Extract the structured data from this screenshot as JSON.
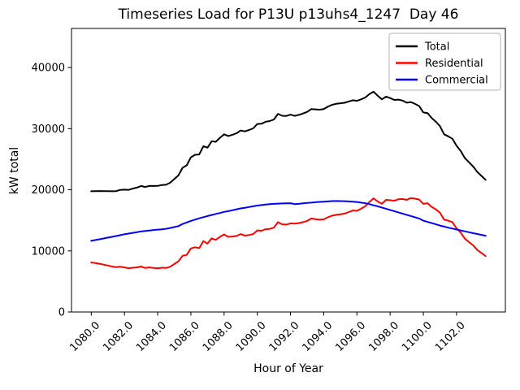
{
  "chart_data": {
    "type": "line",
    "title": "Timeseries Load for P13U p13uhs4_1247  Day 46",
    "xlabel": "Hour of Year",
    "ylabel": "kW total",
    "xlim": [
      1078.81,
      1104.94
    ],
    "ylim": [
      0,
      46400
    ],
    "grid": false,
    "x_tick_values": [
      1080,
      1082,
      1084,
      1086,
      1088,
      1090,
      1092,
      1094,
      1096,
      1098,
      1100,
      1102
    ],
    "x_tick_labels": [
      "1080.0",
      "1082.0",
      "1084.0",
      "1086.0",
      "1088.0",
      "1090.0",
      "1092.0",
      "1094.0",
      "1096.0",
      "1098.0",
      "1100.0",
      "1102.0"
    ],
    "y_ticks": [
      0,
      10000,
      20000,
      30000,
      40000
    ],
    "y_tick_labels": [
      "0",
      "10000",
      "20000",
      "30000",
      "40000"
    ],
    "legend": {
      "position": "upper-right",
      "entries": [
        {
          "label": "Total",
          "color": "#000000"
        },
        {
          "label": "Residential",
          "color": "#ff0000"
        },
        {
          "label": "Commercial",
          "color": "#0000ff"
        }
      ]
    },
    "x": [
      1080.0,
      1080.25,
      1080.5,
      1080.75,
      1081.0,
      1081.25,
      1081.5,
      1081.75,
      1082.0,
      1082.25,
      1082.5,
      1082.75,
      1083.0,
      1083.25,
      1083.5,
      1083.75,
      1084.0,
      1084.25,
      1084.5,
      1084.75,
      1085.0,
      1085.25,
      1085.5,
      1085.75,
      1086.0,
      1086.25,
      1086.5,
      1086.75,
      1087.0,
      1087.25,
      1087.5,
      1087.75,
      1088.0,
      1088.25,
      1088.5,
      1088.75,
      1089.0,
      1089.25,
      1089.5,
      1089.75,
      1090.0,
      1090.25,
      1090.5,
      1090.75,
      1091.0,
      1091.25,
      1091.5,
      1091.75,
      1092.0,
      1092.25,
      1092.5,
      1092.75,
      1093.0,
      1093.25,
      1093.5,
      1093.75,
      1094.0,
      1094.25,
      1094.5,
      1094.75,
      1095.0,
      1095.25,
      1095.5,
      1095.75,
      1096.0,
      1096.25,
      1096.5,
      1096.75,
      1097.0,
      1097.25,
      1097.5,
      1097.75,
      1098.0,
      1098.25,
      1098.5,
      1098.75,
      1099.0,
      1099.25,
      1099.5,
      1099.75,
      1100.0,
      1100.25,
      1100.5,
      1100.75,
      1101.0,
      1101.25,
      1101.5,
      1101.75,
      1102.0,
      1102.25,
      1102.5,
      1102.75,
      1103.0,
      1103.25,
      1103.5,
      1103.75
    ],
    "series": [
      {
        "name": "Total",
        "color": "#000000",
        "values": [
          19750,
          19780,
          19800,
          19780,
          19780,
          19750,
          19780,
          19980,
          20020,
          19980,
          20200,
          20350,
          20620,
          20460,
          20630,
          20620,
          20630,
          20780,
          20820,
          21150,
          21750,
          22350,
          23600,
          24000,
          25300,
          25720,
          25780,
          27120,
          26900,
          27930,
          27850,
          28500,
          29080,
          28800,
          29000,
          29250,
          29700,
          29560,
          29780,
          30050,
          30770,
          30800,
          31130,
          31250,
          31500,
          32430,
          32110,
          32080,
          32300,
          32100,
          32250,
          32480,
          32750,
          33200,
          33160,
          33110,
          33210,
          33600,
          33900,
          34060,
          34150,
          34230,
          34450,
          34650,
          34550,
          34800,
          35100,
          35650,
          36050,
          35400,
          34800,
          35250,
          35000,
          34700,
          34750,
          34600,
          34250,
          34350,
          34050,
          33700,
          32650,
          32550,
          31750,
          31150,
          30400,
          29070,
          28750,
          28350,
          27200,
          26350,
          25200,
          24500,
          23800,
          22910,
          22270,
          21630
        ]
      },
      {
        "name": "Residential",
        "color": "#ff0000",
        "values": [
          8100,
          8000,
          7900,
          7750,
          7600,
          7450,
          7350,
          7400,
          7300,
          7150,
          7250,
          7300,
          7450,
          7200,
          7300,
          7200,
          7150,
          7250,
          7200,
          7400,
          7850,
          8300,
          9200,
          9350,
          10400,
          10600,
          10450,
          11600,
          11200,
          12050,
          11800,
          12300,
          12700,
          12300,
          12350,
          12450,
          12750,
          12500,
          12600,
          12750,
          13350,
          13300,
          13550,
          13600,
          13800,
          14700,
          14350,
          14300,
          14500,
          14450,
          14550,
          14700,
          14900,
          15300,
          15200,
          15100,
          15150,
          15500,
          15750,
          15900,
          16000,
          16100,
          16350,
          16600,
          16550,
          16900,
          17300,
          18000,
          18600,
          18100,
          17700,
          18350,
          18300,
          18200,
          18450,
          18500,
          18350,
          18650,
          18550,
          18400,
          17700,
          17800,
          17200,
          16800,
          16250,
          15100,
          14950,
          14700,
          13700,
          13000,
          12000,
          11450,
          10900,
          10150,
          9650,
          9150
        ]
      },
      {
        "name": "Commercial",
        "color": "#0000ff",
        "values": [
          11650,
          11780,
          11900,
          12030,
          12180,
          12300,
          12430,
          12580,
          12720,
          12830,
          12950,
          13050,
          13170,
          13260,
          13330,
          13420,
          13480,
          13530,
          13620,
          13750,
          13900,
          14050,
          14400,
          14650,
          14900,
          15120,
          15330,
          15520,
          15700,
          15880,
          16050,
          16200,
          16380,
          16500,
          16650,
          16800,
          16950,
          17060,
          17180,
          17300,
          17420,
          17500,
          17580,
          17650,
          17700,
          17730,
          17760,
          17780,
          17800,
          17650,
          17700,
          17780,
          17850,
          17900,
          17960,
          18010,
          18060,
          18100,
          18150,
          18160,
          18150,
          18130,
          18100,
          18050,
          18000,
          17900,
          17800,
          17650,
          17450,
          17300,
          17100,
          16900,
          16700,
          16500,
          16300,
          16100,
          15900,
          15700,
          15500,
          15300,
          14950,
          14750,
          14550,
          14350,
          14150,
          13970,
          13800,
          13650,
          13500,
          13350,
          13200,
          13050,
          12900,
          12760,
          12620,
          12480
        ]
      }
    ]
  }
}
